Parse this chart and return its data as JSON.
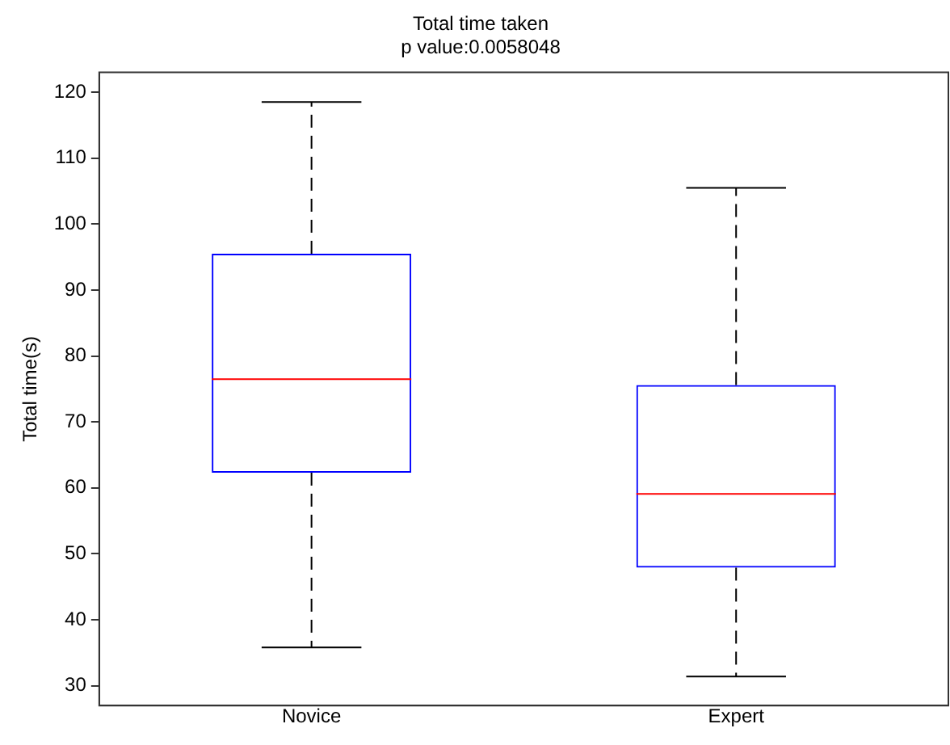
{
  "chart_data": {
    "type": "box",
    "title": "Total time taken",
    "subtitle": "p value:0.0058048",
    "ylabel": "Total time(s)",
    "categories": [
      "Novice",
      "Expert"
    ],
    "color": "#0000ff",
    "boxes": [
      {
        "low": 35.8,
        "q1": 62.3,
        "median": 76.5,
        "q3": 95.5,
        "high": 118.5
      },
      {
        "low": 31.4,
        "q1": 47.9,
        "median": 59.1,
        "q3": 75.6,
        "high": 105.5
      }
    ],
    "ylim": [
      27,
      123
    ],
    "yticks": [
      30,
      40,
      50,
      60,
      70,
      80,
      90,
      100,
      110,
      120
    ],
    "grid": false,
    "legend": false,
    "line_style": "dashed"
  }
}
